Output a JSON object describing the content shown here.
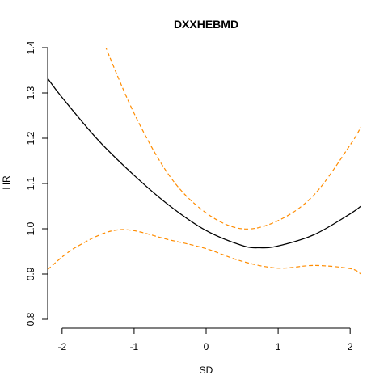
{
  "chart_data": {
    "type": "line",
    "title": "DXXHEBMD",
    "xlabel": "SD",
    "ylabel": "HR",
    "xlim": [
      -2.2,
      2.2
    ],
    "ylim": [
      0.8,
      1.4
    ],
    "xticks": [
      "-2",
      "-1",
      "0",
      "1",
      "2"
    ],
    "yticks": [
      "0.8",
      "0.9",
      "1.0",
      "1.1",
      "1.2",
      "1.3",
      "1.4"
    ],
    "grid": false,
    "legend": "none",
    "series": [
      {
        "role": "estimate",
        "color": "#000000",
        "style": "solid",
        "points": [
          [
            -2.2,
            1.332
          ],
          [
            -2.0,
            1.29
          ],
          [
            -1.5,
            1.196
          ],
          [
            -1.0,
            1.118
          ],
          [
            -0.5,
            1.05
          ],
          [
            0.0,
            0.996
          ],
          [
            0.5,
            0.963
          ],
          [
            0.75,
            0.958
          ],
          [
            1.0,
            0.962
          ],
          [
            1.5,
            0.987
          ],
          [
            2.0,
            1.033
          ],
          [
            2.15,
            1.05
          ]
        ]
      },
      {
        "role": "upper-ci",
        "color": "#ff8c00",
        "style": "dashed",
        "points": [
          [
            -1.47,
            1.43
          ],
          [
            -1.0,
            1.255
          ],
          [
            -0.5,
            1.115
          ],
          [
            0.0,
            1.035
          ],
          [
            0.5,
            1.0
          ],
          [
            1.0,
            1.018
          ],
          [
            1.5,
            1.075
          ],
          [
            2.0,
            1.185
          ],
          [
            2.15,
            1.225
          ]
        ]
      },
      {
        "role": "lower-ci",
        "color": "#ff8c00",
        "style": "dashed",
        "points": [
          [
            -2.2,
            0.91
          ],
          [
            -1.8,
            0.96
          ],
          [
            -1.2,
            0.998
          ],
          [
            -0.5,
            0.975
          ],
          [
            0.0,
            0.956
          ],
          [
            0.5,
            0.928
          ],
          [
            1.0,
            0.913
          ],
          [
            1.5,
            0.919
          ],
          [
            2.0,
            0.912
          ],
          [
            2.15,
            0.9
          ]
        ]
      }
    ]
  }
}
